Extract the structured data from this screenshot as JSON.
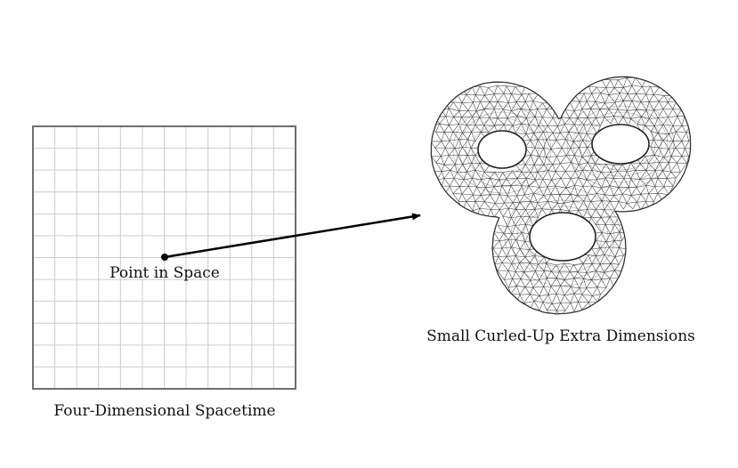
{
  "labels": {
    "point": "Point in Space",
    "spacetime": "Four-Dimensional Spacetime",
    "extra_dimensions": "Small Curled-Up Extra Dimensions"
  },
  "colors": {
    "grid_border": "#6f6f6f",
    "grid_lines": "#cccccc",
    "arrow": "#000000",
    "mesh": "#1a1a1a"
  }
}
